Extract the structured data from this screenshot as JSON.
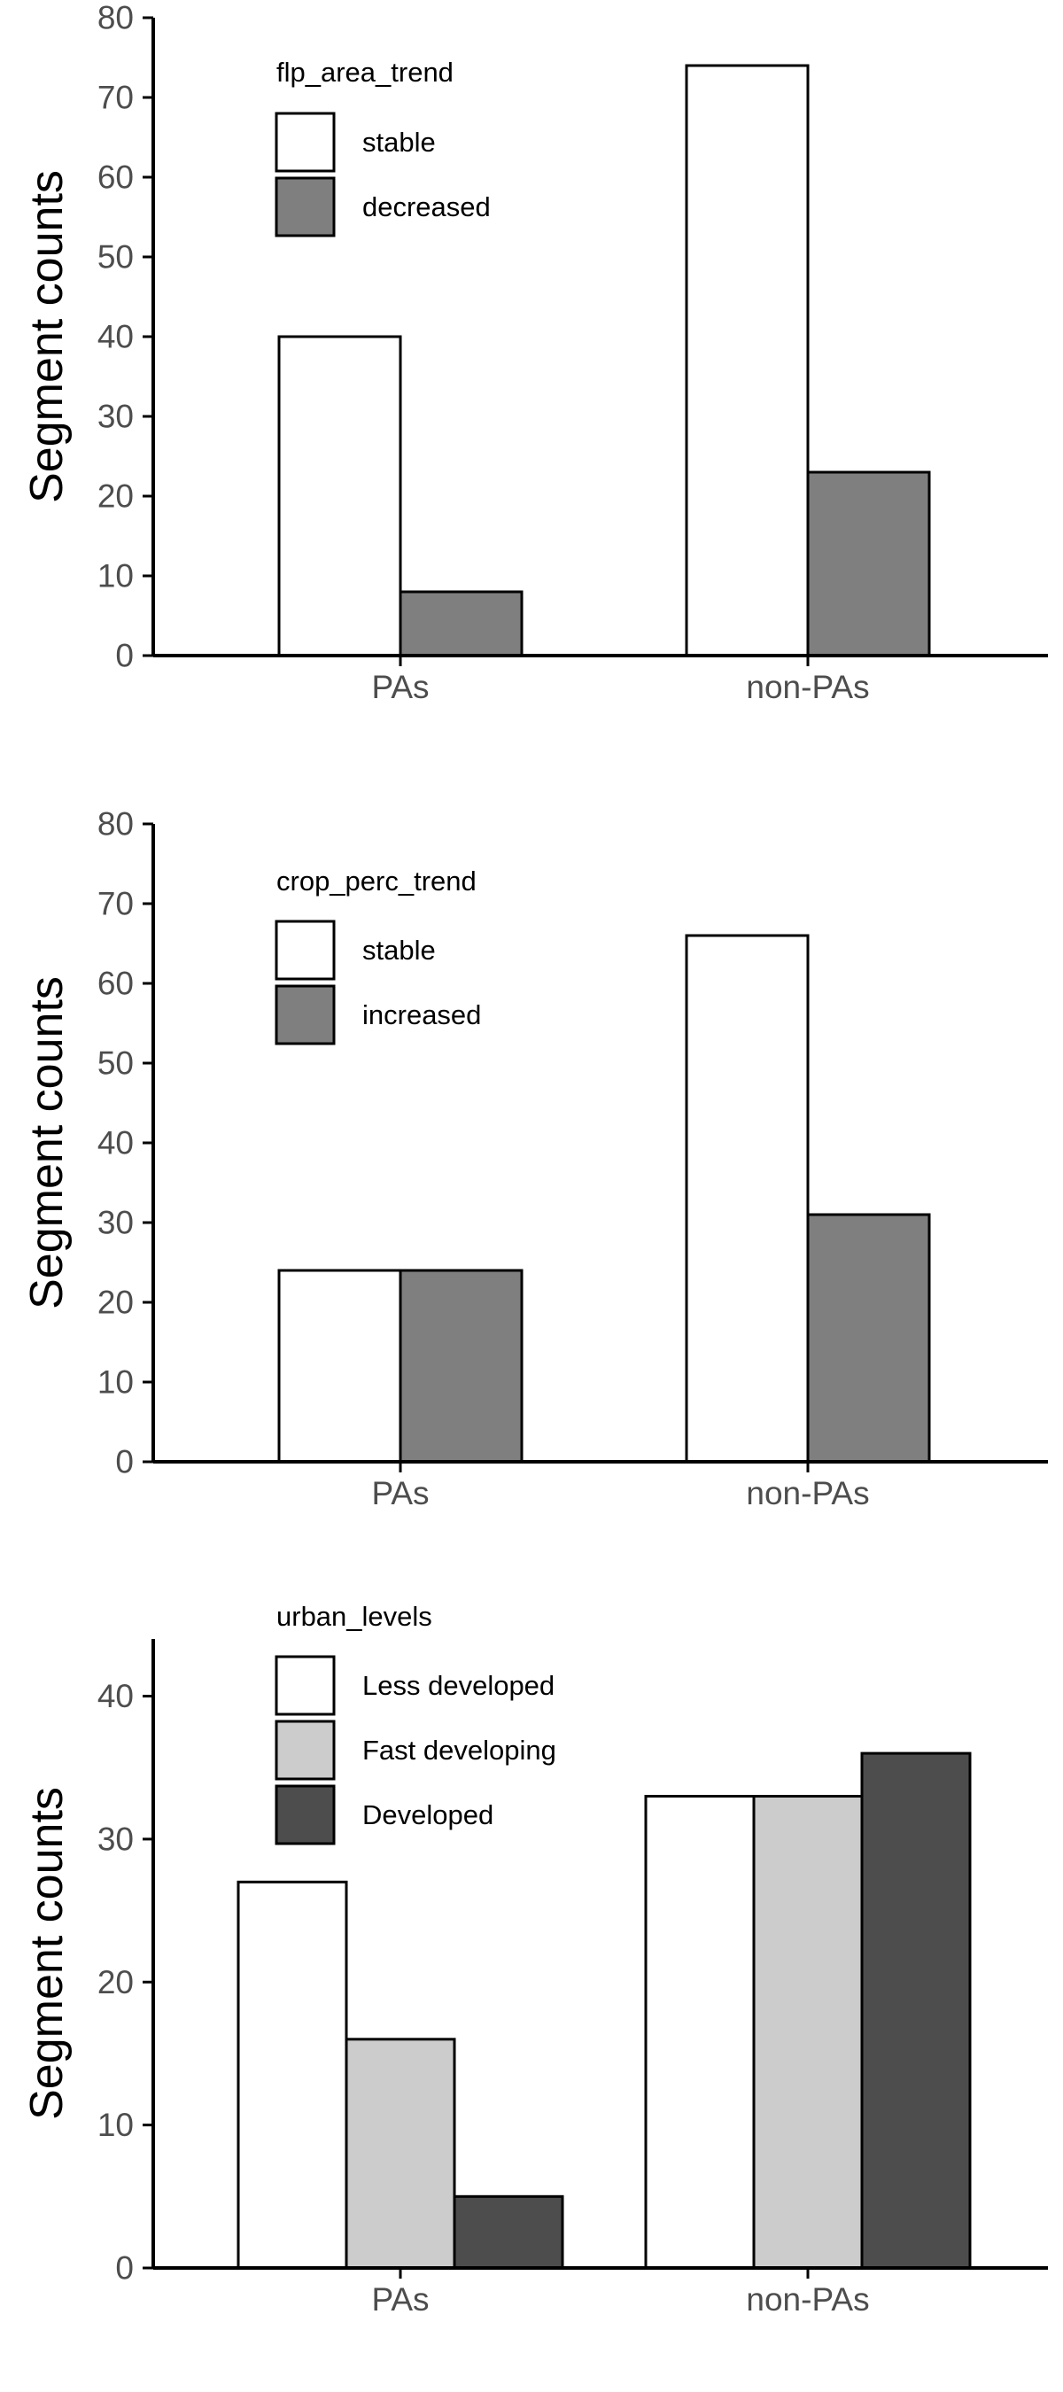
{
  "chart_data": [
    {
      "type": "bar",
      "categories": [
        "PAs",
        "non-PAs"
      ],
      "series": [
        {
          "name": "stable",
          "values": [
            40,
            74
          ],
          "color": "#ffffff"
        },
        {
          "name": "decreased",
          "values": [
            8,
            23
          ],
          "color": "#7f7f7f"
        }
      ],
      "title": "",
      "xlabel": "",
      "ylabel": "Segment counts",
      "ylim": [
        0,
        80
      ],
      "yticks": [
        0,
        10,
        20,
        30,
        40,
        50,
        60,
        70,
        80
      ],
      "legend_title": "flp_area_trend",
      "legend_position": "top-left",
      "grid": false
    },
    {
      "type": "bar",
      "categories": [
        "PAs",
        "non-PAs"
      ],
      "series": [
        {
          "name": "stable",
          "values": [
            24,
            66
          ],
          "color": "#ffffff"
        },
        {
          "name": "increased",
          "values": [
            24,
            31
          ],
          "color": "#7f7f7f"
        }
      ],
      "title": "",
      "xlabel": "",
      "ylabel": "Segment counts",
      "ylim": [
        0,
        80
      ],
      "yticks": [
        0,
        10,
        20,
        30,
        40,
        50,
        60,
        70,
        80
      ],
      "legend_title": "crop_perc_trend",
      "legend_position": "top-left",
      "grid": false
    },
    {
      "type": "bar",
      "categories": [
        "PAs",
        "non-PAs"
      ],
      "series": [
        {
          "name": "Less developed",
          "values": [
            27,
            33
          ],
          "color": "#ffffff"
        },
        {
          "name": "Fast developing",
          "values": [
            16,
            33
          ],
          "color": "#cccccc"
        },
        {
          "name": "Developed",
          "values": [
            5,
            36
          ],
          "color": "#4d4d4d"
        }
      ],
      "title": "",
      "xlabel": "",
      "ylabel": "Segment counts",
      "ylim": [
        0,
        44
      ],
      "yticks": [
        0,
        10,
        20,
        30,
        40
      ],
      "legend_title": "urban_levels",
      "legend_position": "top-left",
      "grid": false
    }
  ]
}
